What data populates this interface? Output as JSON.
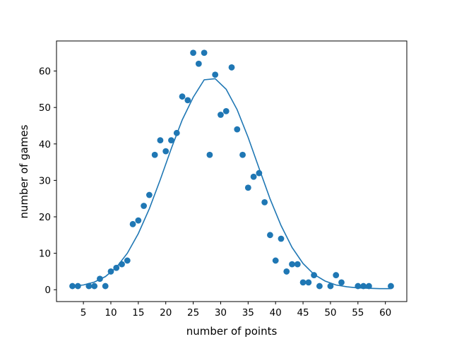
{
  "chart_data": {
    "type": "scatter",
    "xlabel": "number of points",
    "ylabel": "number of games",
    "xlim": [
      0.1,
      63.9
    ],
    "ylim": [
      -3.25,
      68.25
    ],
    "x_ticks": [
      5,
      10,
      15,
      20,
      25,
      30,
      35,
      40,
      45,
      50,
      55,
      60
    ],
    "y_ticks": [
      0,
      10,
      20,
      30,
      40,
      50,
      60
    ],
    "grid": false,
    "colors": {
      "series": "#1f77b4"
    },
    "series": [
      {
        "type": "scatter",
        "x": [
          3,
          4,
          6,
          7,
          8,
          9,
          10,
          11,
          12,
          13,
          14,
          15,
          16,
          17,
          18,
          19,
          20,
          21,
          22,
          23,
          24,
          25,
          26,
          27,
          28,
          29,
          30,
          31,
          32,
          33,
          34,
          35,
          36,
          37,
          38,
          39,
          40,
          41,
          42,
          43,
          44,
          45,
          46,
          47,
          48,
          50,
          51,
          52,
          55,
          56,
          57,
          61
        ],
        "y": [
          1,
          1,
          1,
          1,
          3,
          1,
          5,
          6,
          7,
          8,
          18,
          19,
          23,
          26,
          37,
          41,
          38,
          41,
          43,
          53,
          52,
          65,
          62,
          65,
          37,
          59,
          48,
          49,
          61,
          44,
          37,
          28,
          31,
          32,
          24,
          15,
          8,
          14,
          5,
          7,
          7,
          2,
          2,
          4,
          1,
          1,
          4,
          2,
          1,
          1,
          1,
          1
        ]
      },
      {
        "type": "line",
        "x": [
          3,
          5,
          7,
          9,
          11,
          13,
          15,
          17,
          19,
          21,
          23,
          25,
          27,
          29,
          31,
          33,
          35,
          37,
          39,
          41,
          43,
          45,
          47,
          49,
          51,
          53,
          55,
          57,
          59,
          61
        ],
        "y": [
          1.0,
          1.3,
          2.1,
          3.6,
          6.1,
          10.0,
          15.4,
          22.2,
          30.2,
          38.7,
          46.6,
          52.8,
          57.6,
          57.9,
          55.0,
          49.4,
          41.8,
          33.3,
          24.9,
          17.6,
          11.6,
          7.2,
          4.2,
          2.4,
          1.3,
          0.8,
          0.5,
          0.4,
          0.3,
          0.3
        ]
      }
    ]
  }
}
